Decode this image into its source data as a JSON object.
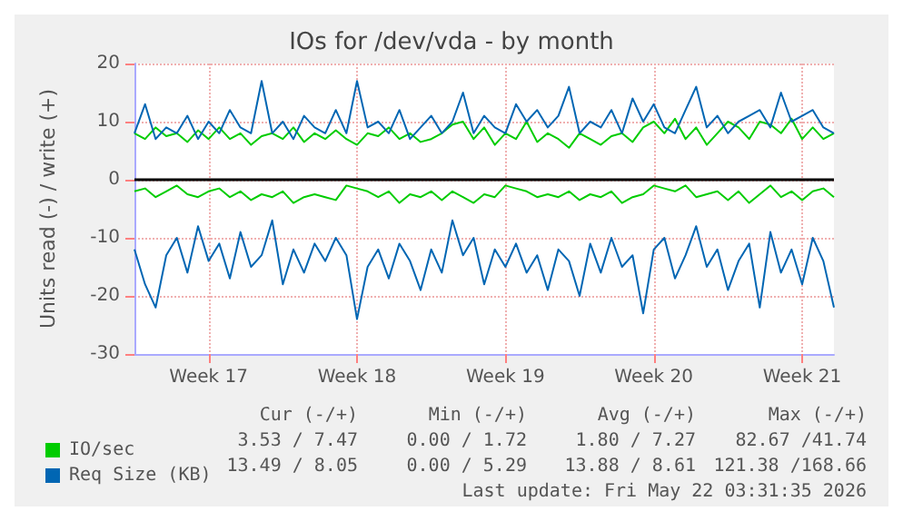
{
  "chart_data": {
    "type": "line",
    "title": "IOs for /dev/vda - by month",
    "ylabel": "Units read (-) / write (+)",
    "categories": [
      null,
      null,
      null,
      null,
      null,
      null,
      null,
      "Week 17",
      null,
      null,
      null,
      null,
      null,
      null,
      null,
      null,
      null,
      null,
      null,
      null,
      null,
      "Week 18",
      null,
      null,
      null,
      null,
      null,
      null,
      null,
      null,
      null,
      null,
      null,
      null,
      null,
      "Week 19",
      null,
      null,
      null,
      null,
      null,
      null,
      null,
      null,
      null,
      null,
      null,
      null,
      null,
      "Week 20",
      null,
      null,
      null,
      null,
      null,
      null,
      null,
      null,
      null,
      null,
      null,
      null,
      null,
      "Week 21",
      null,
      null,
      null
    ],
    "ylim": [
      -30,
      20
    ],
    "yticks": [
      -30,
      -20,
      -10,
      0,
      10,
      20
    ],
    "grid": true,
    "legend": "bottom",
    "marker": "none",
    "line_style": "solid",
    "ref_lines": [
      {
        "axis": "y",
        "value": 0,
        "color": "#000000"
      }
    ],
    "series": [
      {
        "color": "#00cc00",
        "values": [
          -2,
          -1.5,
          -3,
          -2,
          -1,
          -2.5,
          -3,
          -2,
          -1.5,
          -3,
          -2,
          -3.5,
          -2.5,
          -3,
          -2,
          -4,
          -3,
          -2.5,
          -3,
          -3.5,
          -1,
          -1.5,
          -2,
          -3,
          -2,
          -4,
          -2.5,
          -3,
          -2,
          -3.5,
          -2,
          -3,
          -4,
          -2.5,
          -3,
          -1,
          -1.5,
          -2,
          -3,
          -2.5,
          -3,
          -2,
          -3.5,
          -2.5,
          -3,
          -2,
          -4,
          -3,
          -2.5,
          -1,
          -1.5,
          -2,
          -1,
          -3,
          -2.5,
          -2,
          -3.5,
          -2,
          -4,
          -2.5,
          -1,
          -3,
          -2,
          -3.5,
          -2,
          -1.5,
          -3
        ]
      },
      {
        "name": "IO/sec",
        "color": "#00cc00",
        "values": [
          8,
          7,
          9,
          7.5,
          8,
          6.5,
          8.5,
          7,
          9,
          7,
          8,
          6,
          7.5,
          8,
          7,
          9,
          6.5,
          8,
          7,
          8.5,
          7,
          6,
          8,
          7.5,
          9,
          7,
          8,
          6.5,
          7,
          8,
          9.5,
          10,
          7,
          9,
          6,
          8,
          7,
          10,
          6.5,
          8,
          7,
          5.5,
          8,
          7,
          6,
          7.5,
          8,
          6.5,
          9,
          10,
          8,
          10.5,
          7,
          9,
          6,
          8,
          10,
          9,
          7,
          10,
          9.5,
          8,
          10.5,
          7,
          9,
          7,
          8
        ]
      },
      {
        "color": "#0066b3",
        "values": [
          -12,
          -18,
          -22,
          -13,
          -10,
          -16,
          -8,
          -14,
          -11,
          -17,
          -9,
          -15,
          -13,
          -7,
          -18,
          -12,
          -16,
          -11,
          -14,
          -10,
          -13,
          -24,
          -15,
          -12,
          -17,
          -11,
          -14,
          -19,
          -12,
          -16,
          -7,
          -13,
          -10,
          -18,
          -12,
          -15,
          -11,
          -16,
          -13,
          -19,
          -12,
          -14,
          -20,
          -11,
          -16,
          -10,
          -15,
          -13,
          -23,
          -12,
          -10,
          -17,
          -13,
          -8,
          -15,
          -12,
          -19,
          -14,
          -11,
          -22,
          -9,
          -16,
          -12,
          -18,
          -10,
          -14,
          -22
        ]
      },
      {
        "name": "Req Size (KB)",
        "color": "#0066b3",
        "values": [
          8,
          13,
          7,
          9,
          8,
          11,
          7,
          10,
          8,
          12,
          9,
          8,
          17,
          8,
          10,
          7,
          11,
          9,
          8,
          12,
          8,
          17,
          9,
          10,
          8,
          12,
          7,
          9,
          11,
          8,
          10,
          15,
          8,
          11,
          9,
          8,
          13,
          10,
          12,
          9,
          11,
          16,
          8,
          10,
          9,
          12,
          8,
          14,
          10,
          13,
          9,
          8,
          12,
          16,
          9,
          11,
          8,
          10,
          11,
          12,
          9,
          15,
          10,
          11,
          12,
          9,
          8
        ]
      }
    ],
    "annotations": [
      "Cur (-/+)",
      "Min (-/+)",
      "Avg (-/+)",
      "Max (-/+)",
      "3.53 / 7.47",
      "0.00 / 1.72",
      "1.80 / 7.27",
      "82.67 /41.74",
      "13.49 / 8.05",
      "0.00 / 5.29",
      "13.88 / 8.61",
      "121.38 /168.66",
      "Last update: Fri May 22 03:31:35 2026"
    ]
  }
}
